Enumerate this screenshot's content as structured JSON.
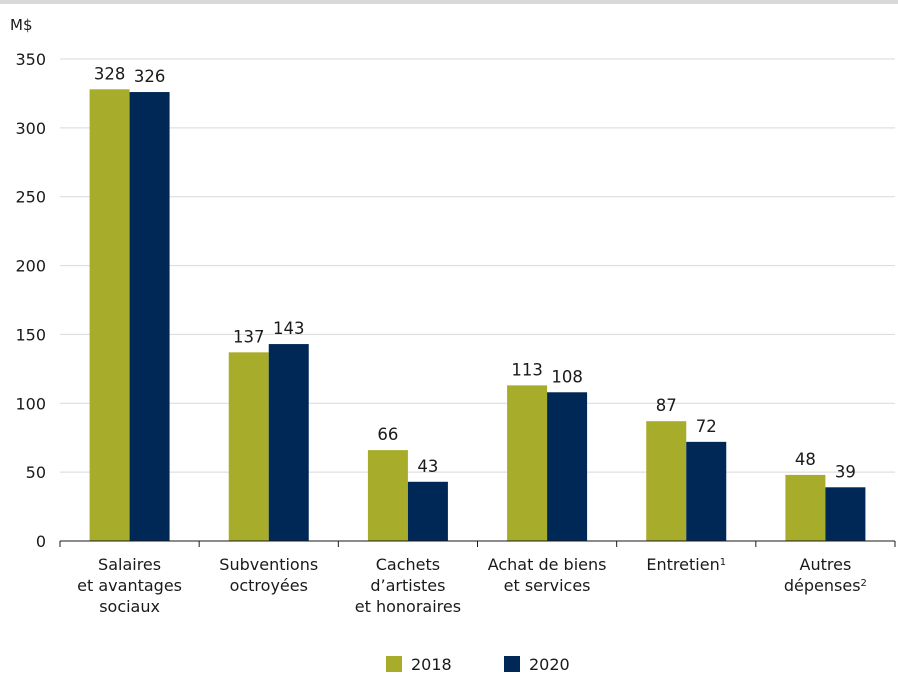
{
  "chart_data": {
    "type": "bar",
    "unit_label": "M$",
    "ylim": [
      0,
      350
    ],
    "yticks": [
      0,
      50,
      100,
      150,
      200,
      250,
      300,
      350
    ],
    "grid": true,
    "legend_position": "bottom-center",
    "categories": [
      {
        "lines": [
          "Salaires",
          "et avantages",
          "sociaux"
        ],
        "sup": ""
      },
      {
        "lines": [
          "Subventions",
          "octroyées"
        ],
        "sup": ""
      },
      {
        "lines": [
          "Cachets",
          "d’artistes",
          "et honoraires"
        ],
        "sup": ""
      },
      {
        "lines": [
          "Achat de biens",
          "et services"
        ],
        "sup": ""
      },
      {
        "lines": [
          "Entretien"
        ],
        "sup": "1"
      },
      {
        "lines": [
          "Autres",
          "dépenses"
        ],
        "sup": "2"
      }
    ],
    "series": [
      {
        "name": "2018",
        "color": "#a8ac2b",
        "values": [
          328,
          137,
          66,
          113,
          87,
          48
        ]
      },
      {
        "name": "2020",
        "color": "#002856",
        "values": [
          326,
          143,
          43,
          108,
          72,
          39
        ]
      }
    ]
  }
}
